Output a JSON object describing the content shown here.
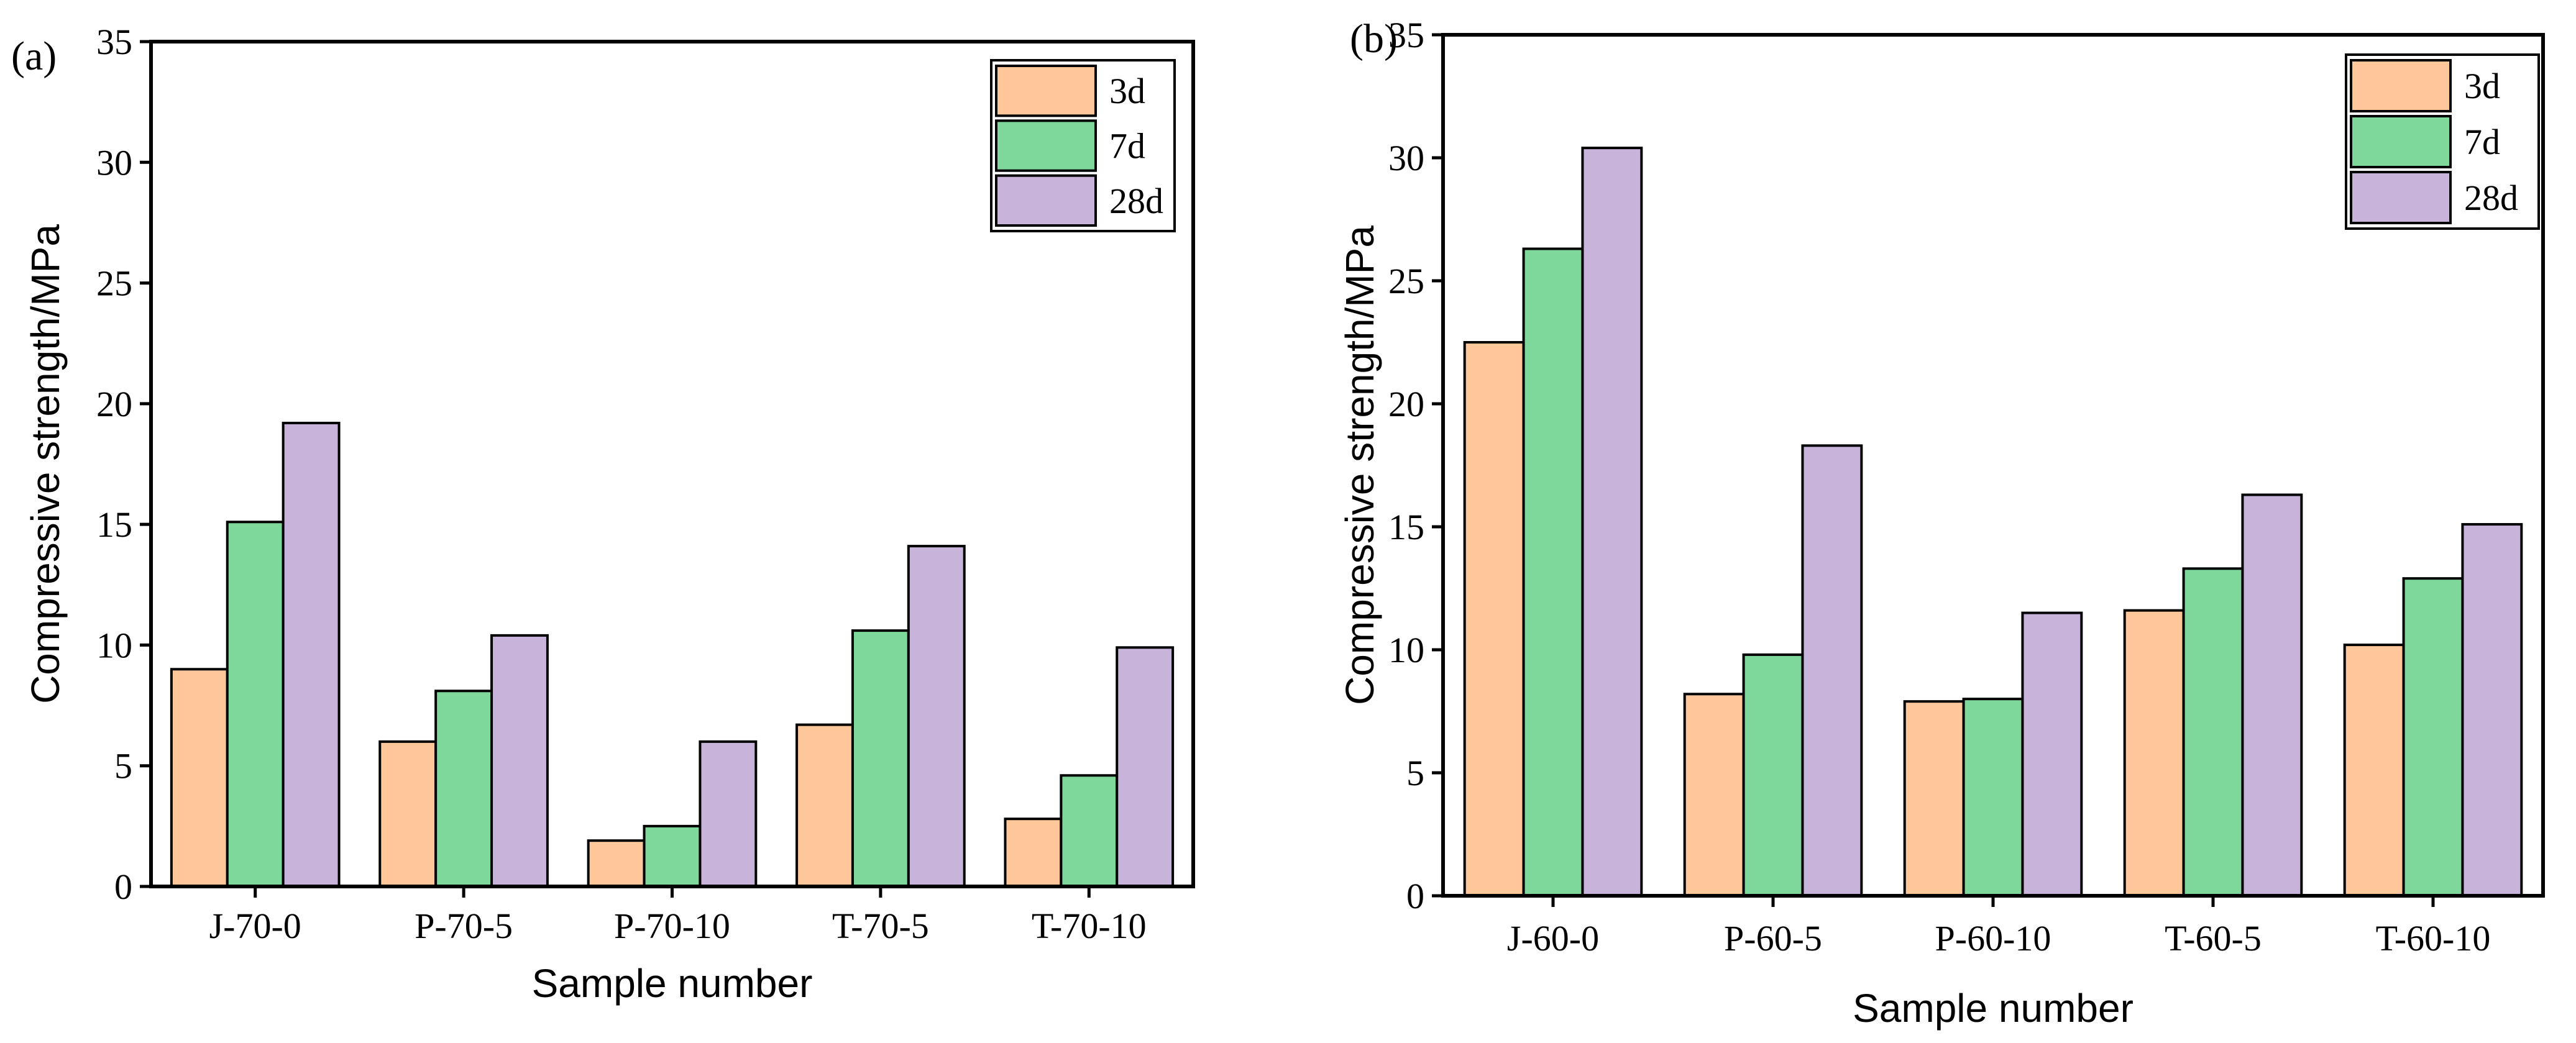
{
  "chart_data": [
    {
      "type": "bar",
      "panel_label": "(a)",
      "categories": [
        "J-70-0",
        "P-70-5",
        "P-70-10",
        "T-70-5",
        "T-70-10"
      ],
      "series": [
        {
          "name": "3d",
          "color": "#FDC79A",
          "values": [
            9.0,
            6.0,
            1.9,
            6.7,
            2.8
          ]
        },
        {
          "name": "7d",
          "color": "#7FD89B",
          "values": [
            15.1,
            8.1,
            2.5,
            10.6,
            4.6
          ]
        },
        {
          "name": "28d",
          "color": "#C8B3DB",
          "values": [
            19.2,
            10.4,
            6.0,
            14.1,
            9.9
          ]
        }
      ],
      "xlabel": "Sample number",
      "ylabel": "Compressive strength/MPa",
      "ylim": [
        0,
        35
      ],
      "yticks": [
        0,
        5,
        10,
        15,
        20,
        25,
        30,
        35
      ],
      "legend_position": "top-right",
      "grid": false
    },
    {
      "type": "bar",
      "panel_label": "(b)",
      "categories": [
        "J-60-0",
        "P-60-5",
        "P-60-10",
        "T-60-5",
        "T-60-10"
      ],
      "series": [
        {
          "name": "3d",
          "color": "#FDC79A",
          "values": [
            22.5,
            8.2,
            7.9,
            11.6,
            10.2
          ]
        },
        {
          "name": "7d",
          "color": "#7FD89B",
          "values": [
            26.3,
            9.8,
            8.0,
            13.3,
            12.9
          ]
        },
        {
          "name": "28d",
          "color": "#C8B3DB",
          "values": [
            30.4,
            18.3,
            11.5,
            16.3,
            15.1
          ]
        }
      ],
      "xlabel": "Sample number",
      "ylabel": "Compressive strength/MPa",
      "ylim": [
        0,
        35
      ],
      "yticks": [
        0,
        5,
        10,
        15,
        20,
        25,
        30,
        35
      ],
      "legend_position": "top-right",
      "grid": false
    }
  ]
}
